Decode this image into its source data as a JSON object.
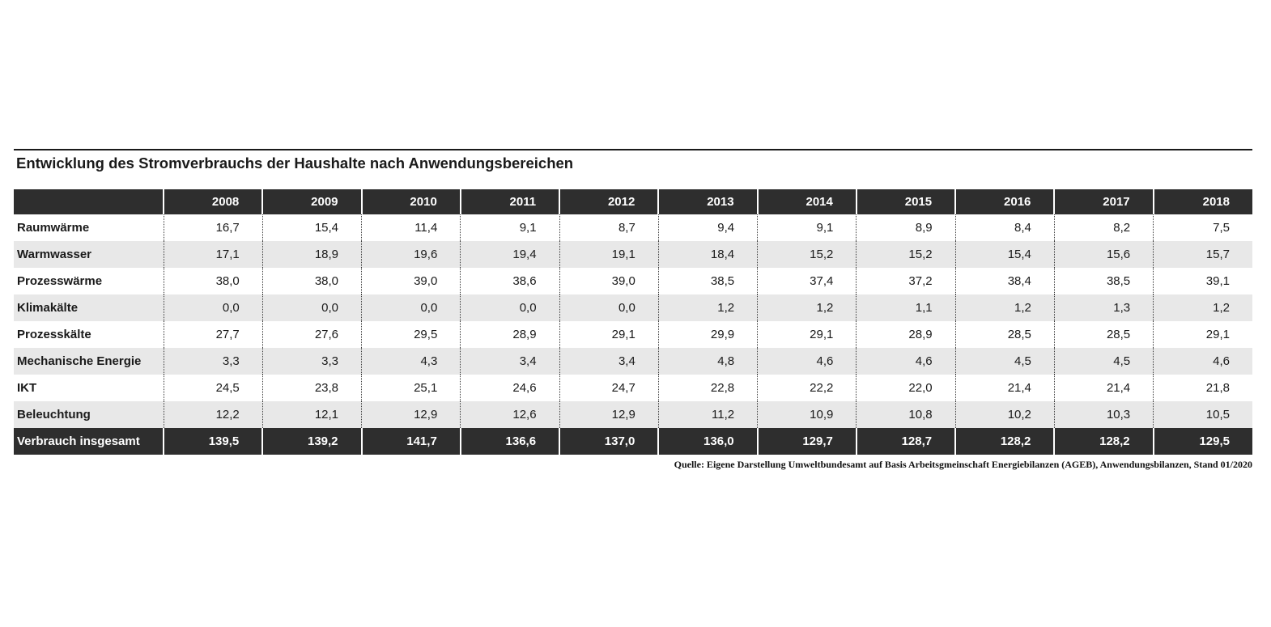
{
  "page": {
    "title": "Entwicklung des Stromverbrauchs der Haushalte nach Anwendungsbereichen",
    "source": "Quelle: Eigene Darstellung Umweltbundesamt auf Basis Arbeitsgmeinschaft Energiebilanzen (AGEB), Anwendungsbilanzen, Stand 01/2020"
  },
  "colors": {
    "header_bg": "#2e2e2e",
    "total_row_bg": "#2e2e2e",
    "alt_row_bg": "#e8e8e8",
    "header_text": "#ffffff",
    "body_text": "#1a1a1a"
  },
  "chart_data": {
    "type": "table",
    "title": "Entwicklung des Stromverbrauchs der Haushalte nach Anwendungsbereichen",
    "columns": [
      "",
      "2008",
      "2009",
      "2010",
      "2011",
      "2012",
      "2013",
      "2014",
      "2015",
      "2016",
      "2017",
      "2018"
    ],
    "rows": [
      {
        "label": "Raumwärme",
        "values": [
          "16,7",
          "15,4",
          "11,4",
          "9,1",
          "8,7",
          "9,4",
          "9,1",
          "8,9",
          "8,4",
          "8,2",
          "7,5"
        ]
      },
      {
        "label": "Warmwasser",
        "values": [
          "17,1",
          "18,9",
          "19,6",
          "19,4",
          "19,1",
          "18,4",
          "15,2",
          "15,2",
          "15,4",
          "15,6",
          "15,7"
        ]
      },
      {
        "label": "Prozesswärme",
        "values": [
          "38,0",
          "38,0",
          "39,0",
          "38,6",
          "39,0",
          "38,5",
          "37,4",
          "37,2",
          "38,4",
          "38,5",
          "39,1"
        ]
      },
      {
        "label": "Klimakälte",
        "values": [
          "0,0",
          "0,0",
          "0,0",
          "0,0",
          "0,0",
          "1,2",
          "1,2",
          "1,1",
          "1,2",
          "1,3",
          "1,2"
        ]
      },
      {
        "label": "Prozesskälte",
        "values": [
          "27,7",
          "27,6",
          "29,5",
          "28,9",
          "29,1",
          "29,9",
          "29,1",
          "28,9",
          "28,5",
          "28,5",
          "29,1"
        ]
      },
      {
        "label": "Mechanische Energie",
        "values": [
          "3,3",
          "3,3",
          "4,3",
          "3,4",
          "3,4",
          "4,8",
          "4,6",
          "4,6",
          "4,5",
          "4,5",
          "4,6"
        ]
      },
      {
        "label": "IKT",
        "values": [
          "24,5",
          "23,8",
          "25,1",
          "24,6",
          "24,7",
          "22,8",
          "22,2",
          "22,0",
          "21,4",
          "21,4",
          "21,8"
        ]
      },
      {
        "label": "Beleuchtung",
        "values": [
          "12,2",
          "12,1",
          "12,9",
          "12,6",
          "12,9",
          "11,2",
          "10,9",
          "10,8",
          "10,2",
          "10,3",
          "10,5"
        ]
      }
    ],
    "total_row": {
      "label": "Verbrauch insgesamt",
      "values": [
        "139,5",
        "139,2",
        "141,7",
        "136,6",
        "137,0",
        "136,0",
        "129,7",
        "128,7",
        "128,2",
        "128,2",
        "129,5"
      ]
    }
  }
}
